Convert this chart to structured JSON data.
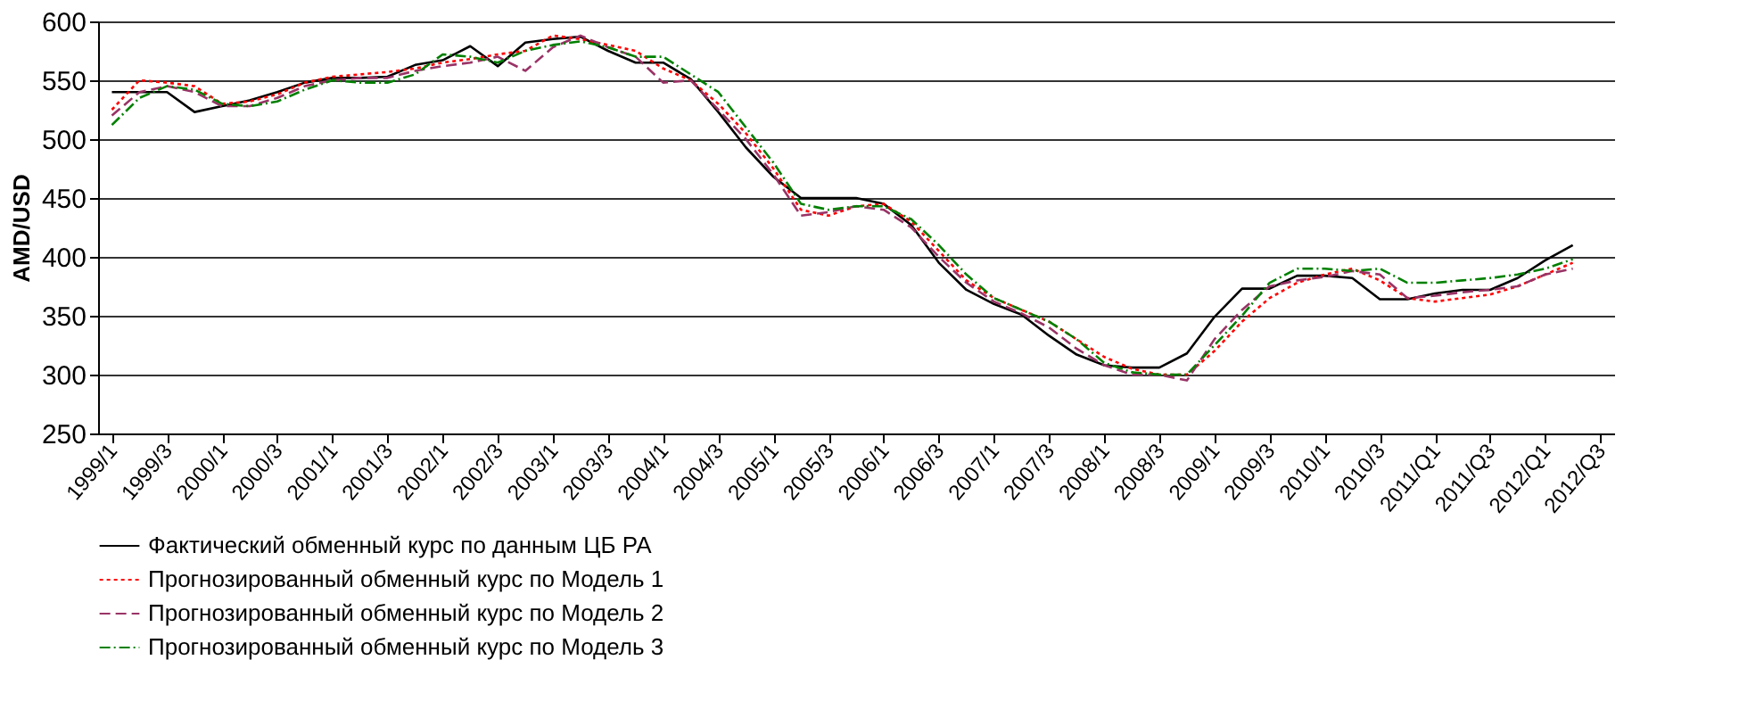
{
  "chart_data": {
    "type": "line",
    "ylabel": "AMD/USD",
    "categories": [
      "1999/1",
      null,
      "1999/3",
      null,
      "2000/1",
      null,
      "2000/3",
      null,
      "2001/1",
      null,
      "2001/3",
      null,
      "2002/1",
      null,
      "2002/3",
      null,
      "2003/1",
      null,
      "2003/3",
      null,
      "2004/1",
      null,
      "2004/3",
      null,
      "2005/1",
      null,
      "2005/3",
      null,
      "2006/1",
      null,
      "2006/3",
      null,
      "2007/1",
      null,
      "2007/3",
      null,
      "2008/1",
      null,
      "2008/3",
      null,
      "2009/1",
      null,
      "2009/3",
      null,
      "2010/1",
      null,
      "2010/3",
      null,
      "2011/Q1",
      null,
      "2011/Q3",
      null,
      "2012/Q1",
      null,
      "2012/Q3"
    ],
    "series": [
      {
        "name": "Фактический обменный курс по данным ЦБ РА",
        "color": "#000000",
        "line_style": "solid",
        "values": [
          540,
          540,
          540,
          523,
          528,
          533,
          540,
          548,
          552,
          552,
          553,
          563,
          567,
          579,
          562,
          582,
          585,
          587,
          575,
          565,
          565,
          551,
          523,
          493,
          468,
          450,
          450,
          450,
          445,
          427,
          395,
          372,
          360,
          351,
          333,
          317,
          308,
          306,
          306,
          318,
          349,
          373,
          373,
          384,
          384,
          382,
          364,
          364,
          369,
          372,
          372,
          382,
          397,
          410,
          null
        ]
      },
      {
        "name": "Прогнозированный обменный курс по Модель 1",
        "color": "#ff0000",
        "line_style": "dotted",
        "values": [
          525,
          550,
          548,
          545,
          530,
          532,
          538,
          548,
          553,
          555,
          557,
          560,
          565,
          568,
          572,
          575,
          588,
          585,
          580,
          575,
          560,
          550,
          530,
          505,
          475,
          440,
          435,
          443,
          445,
          430,
          405,
          380,
          365,
          355,
          345,
          330,
          315,
          305,
          300,
          300,
          320,
          345,
          365,
          378,
          385,
          390,
          380,
          365,
          362,
          365,
          368,
          375,
          385,
          395,
          null
        ]
      },
      {
        "name": "Прогнозированный обменный курс по Модель 2",
        "color": "#993366",
        "line_style": "dashed",
        "values": [
          520,
          540,
          545,
          540,
          528,
          528,
          535,
          545,
          550,
          552,
          552,
          558,
          562,
          565,
          570,
          558,
          578,
          588,
          578,
          570,
          548,
          550,
          525,
          500,
          470,
          435,
          438,
          443,
          440,
          425,
          400,
          378,
          362,
          352,
          340,
          322,
          308,
          300,
          300,
          295,
          330,
          355,
          375,
          380,
          383,
          388,
          385,
          365,
          367,
          370,
          372,
          375,
          385,
          390,
          null
        ]
      },
      {
        "name": "Прогнозированный обменный курс по Модель 3",
        "color": "#008000",
        "line_style": "dashdot",
        "values": [
          512,
          535,
          545,
          542,
          530,
          528,
          532,
          542,
          550,
          548,
          548,
          555,
          572,
          570,
          565,
          575,
          580,
          583,
          578,
          570,
          570,
          555,
          540,
          510,
          480,
          445,
          440,
          443,
          443,
          432,
          410,
          385,
          365,
          355,
          345,
          330,
          310,
          302,
          300,
          300,
          325,
          350,
          378,
          390,
          390,
          388,
          390,
          378,
          378,
          380,
          382,
          385,
          390,
          398,
          null
        ]
      }
    ],
    "ylim": [
      250,
      600
    ],
    "yticks": [
      250,
      300,
      350,
      400,
      450,
      500,
      550,
      600
    ],
    "grid": "y",
    "legend": "bottom left"
  }
}
